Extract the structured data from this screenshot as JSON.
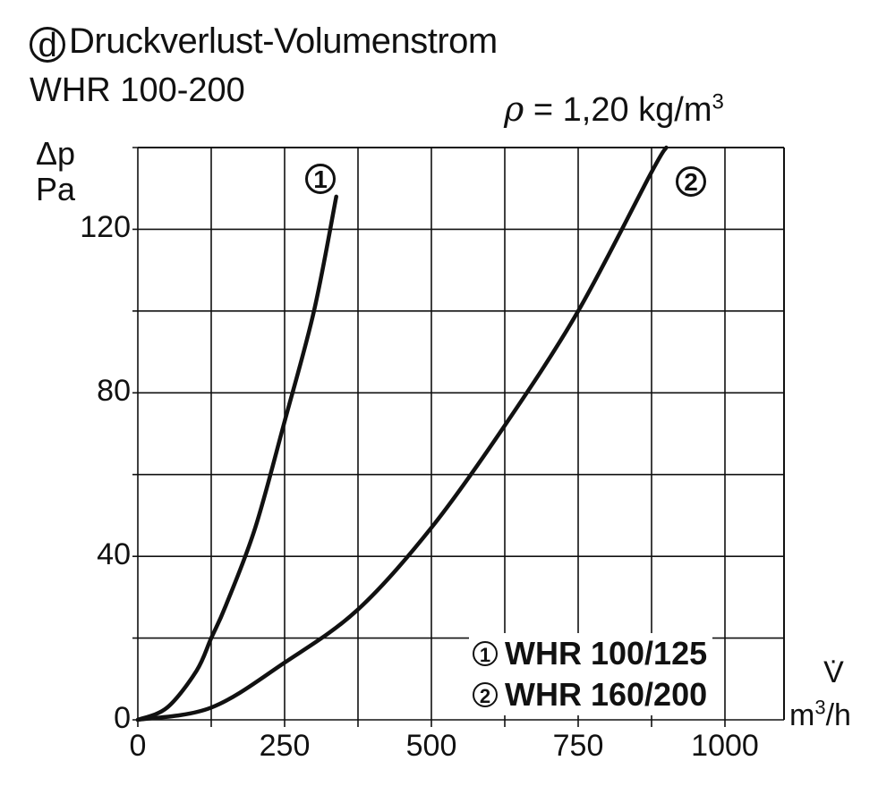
{
  "header": {
    "panel_letter": "d",
    "title": "Druckverlust-Volumenstrom",
    "subtitle": "WHR 100-200",
    "density_symbol": "ρ",
    "density_text": " = 1,20 kg/m",
    "density_exp": "3"
  },
  "axes": {
    "y_label_line1": "Δp",
    "y_label_line2": "Pa",
    "x_label_symbol": "V",
    "x_label_unit_pre": "m",
    "x_label_unit_exp": "3",
    "x_label_unit_post": "/h",
    "y_ticks": [
      "0",
      "40",
      "80",
      "120"
    ],
    "x_ticks": [
      "0",
      "250",
      "500",
      "750",
      "1000"
    ]
  },
  "legend": {
    "items": [
      {
        "num": "1",
        "label": "WHR 100/125"
      },
      {
        "num": "2",
        "label": "WHR 160/200"
      }
    ]
  },
  "curve_labels": {
    "c1": "1",
    "c2": "2"
  },
  "chart_data": {
    "type": "line",
    "title": "Druckverlust-Volumenstrom",
    "subtitle": "WHR 100-200",
    "annotation": "ρ = 1,20 kg/m³",
    "xlabel": "V̇ m³/h",
    "ylabel": "Δp Pa",
    "xlim": [
      0,
      1100
    ],
    "ylim": [
      0,
      140
    ],
    "x_ticks": [
      0,
      250,
      500,
      750,
      1000
    ],
    "y_ticks": [
      0,
      40,
      80,
      120
    ],
    "grid": true,
    "grid_x_step": 125,
    "grid_y_step": 20,
    "legend_position": "lower right",
    "series": [
      {
        "name": "WHR 100/125",
        "marker": "1",
        "x": [
          0,
          50,
          100,
          125,
          150,
          200,
          250,
          300,
          338
        ],
        "y": [
          0,
          3,
          12,
          20,
          28,
          47,
          73,
          100,
          128
        ]
      },
      {
        "name": "WHR 160/200",
        "marker": "2",
        "x": [
          0,
          125,
          250,
          375,
          500,
          625,
          750,
          875,
          900
        ],
        "y": [
          0,
          3,
          14,
          27,
          47,
          72,
          100,
          134,
          140
        ]
      }
    ]
  }
}
